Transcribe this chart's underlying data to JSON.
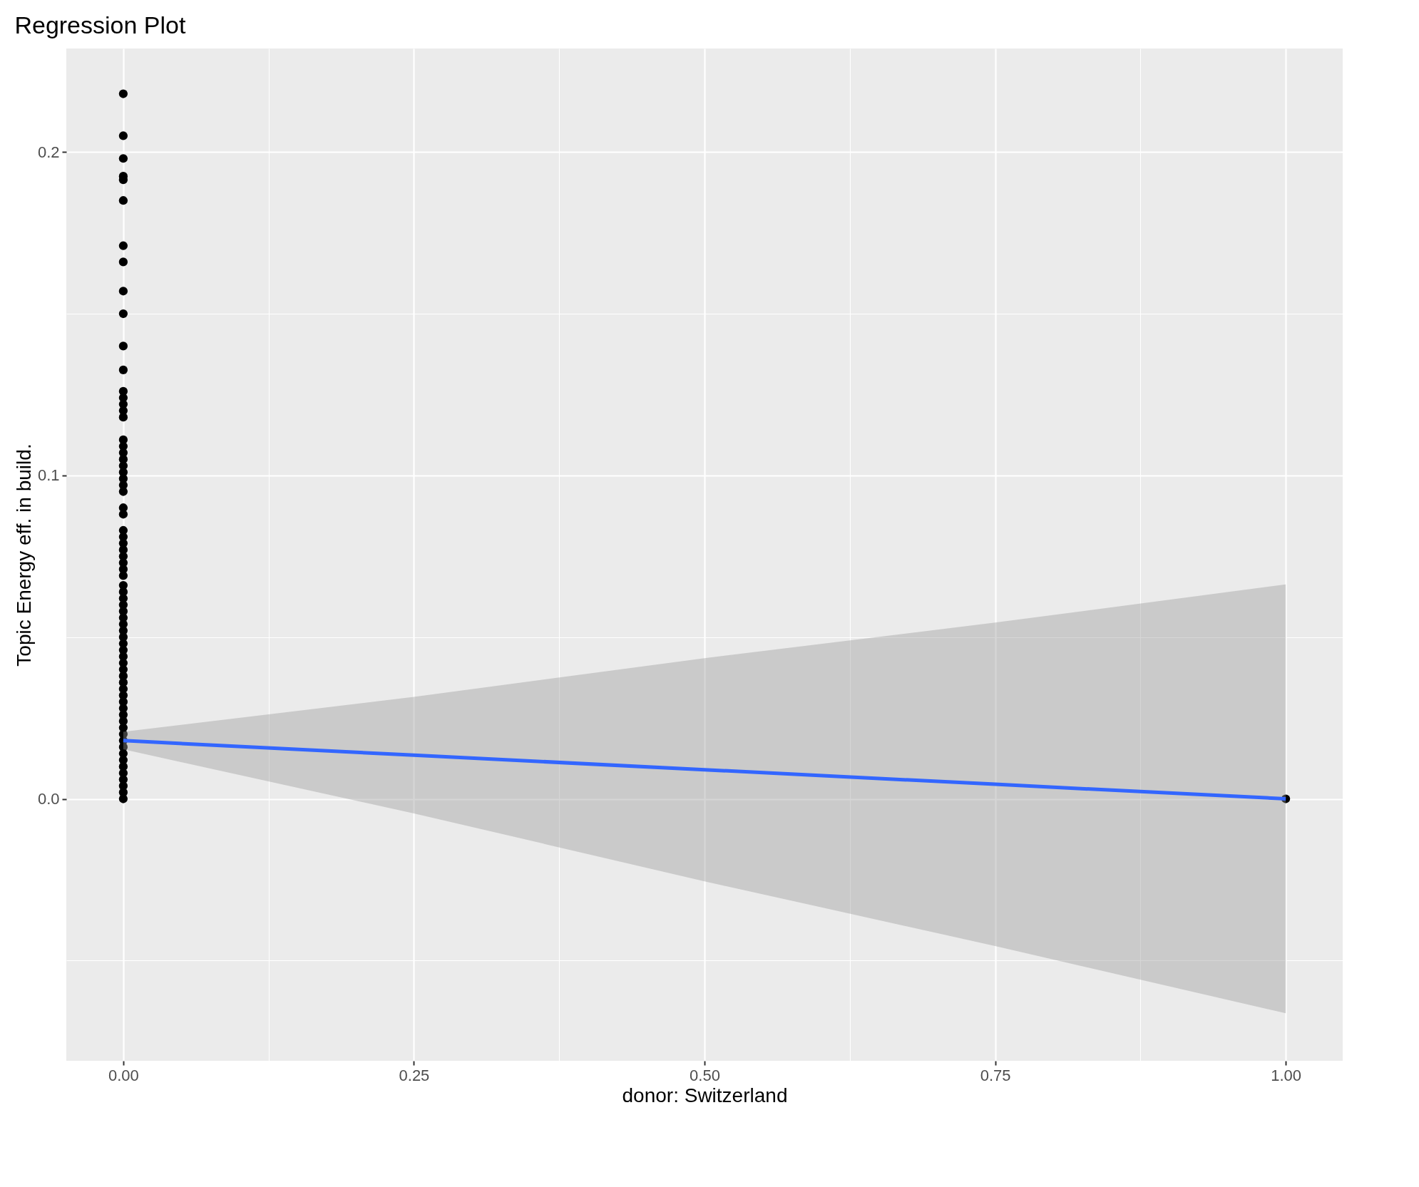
{
  "chart_data": {
    "type": "scatter",
    "title": "Regression Plot",
    "xlabel": "donor: Switzerland",
    "ylabel": "Topic Energy eff. in build.",
    "xlim": [
      -0.049,
      1.049
    ],
    "ylim": [
      -0.081,
      0.232
    ],
    "xticks": [
      {
        "value": 0,
        "label": "0.00"
      },
      {
        "value": 0.125,
        "label": null
      },
      {
        "value": 0.25,
        "label": "0.25"
      },
      {
        "value": 0.375,
        "label": null
      },
      {
        "value": 0.5,
        "label": "0.50"
      },
      {
        "value": 0.625,
        "label": null
      },
      {
        "value": 0.75,
        "label": "0.75"
      },
      {
        "value": 0.875,
        "label": null
      },
      {
        "value": 1,
        "label": "1.00"
      }
    ],
    "yticks": [
      {
        "value": -0.05,
        "label": null
      },
      {
        "value": 0,
        "label": "0.0"
      },
      {
        "value": 0.05,
        "label": null
      },
      {
        "value": 0.1,
        "label": "0.1"
      },
      {
        "value": 0.15,
        "label": null
      },
      {
        "value": 0.2,
        "label": "0.2"
      }
    ],
    "grid": true,
    "series": [
      {
        "marker": "circle",
        "color": "#000000",
        "x": [
          0,
          0,
          0,
          0,
          0,
          0,
          0,
          0,
          0,
          0,
          0,
          0,
          0,
          0,
          0,
          0,
          0,
          0,
          0,
          0,
          0,
          0,
          0,
          0,
          0,
          0,
          0,
          0,
          0,
          0,
          0,
          0,
          0,
          0,
          0,
          0,
          0,
          0,
          0,
          0,
          0,
          0,
          0,
          0,
          0,
          0,
          0,
          0,
          0,
          0,
          0,
          0,
          0,
          0,
          0,
          0,
          0,
          0,
          0,
          0,
          0,
          0,
          0,
          0,
          0,
          0,
          0,
          0,
          0,
          0,
          1
        ],
        "values": [
          0.218,
          0.205,
          0.198,
          0.1925,
          0.1914,
          0.185,
          0.171,
          0.166,
          0.157,
          0.15,
          0.14,
          0.1326,
          0.126,
          0.124,
          0.122,
          0.12,
          0.118,
          0.111,
          0.109,
          0.107,
          0.105,
          0.103,
          0.101,
          0.099,
          0.097,
          0.095,
          0.09,
          0.088,
          0.083,
          0.081,
          0.079,
          0.077,
          0.075,
          0.073,
          0.071,
          0.069,
          0.066,
          0.064,
          0.062,
          0.06,
          0.058,
          0.056,
          0.054,
          0.052,
          0.05,
          0.048,
          0.046,
          0.044,
          0.042,
          0.04,
          0.038,
          0.036,
          0.034,
          0.032,
          0.03,
          0.028,
          0.026,
          0.024,
          0.022,
          0.02,
          0.018,
          0.016,
          0.014,
          0.012,
          0.01,
          0.008,
          0.006,
          0.004,
          0.002,
          0,
          0
        ]
      },
      {
        "type": "line",
        "color": "#3366ff",
        "line_style": "solid",
        "x": [
          0,
          0.25,
          0.5,
          0.75,
          1
        ],
        "values": [
          0.018,
          0.0135,
          0.009,
          0.0045,
          0
        ],
        "lower": [
          0.0153,
          -0.0045,
          -0.0255,
          -0.0455,
          -0.0663
        ],
        "upper": [
          0.0207,
          0.0315,
          0.0435,
          0.0545,
          0.0663
        ]
      }
    ]
  }
}
